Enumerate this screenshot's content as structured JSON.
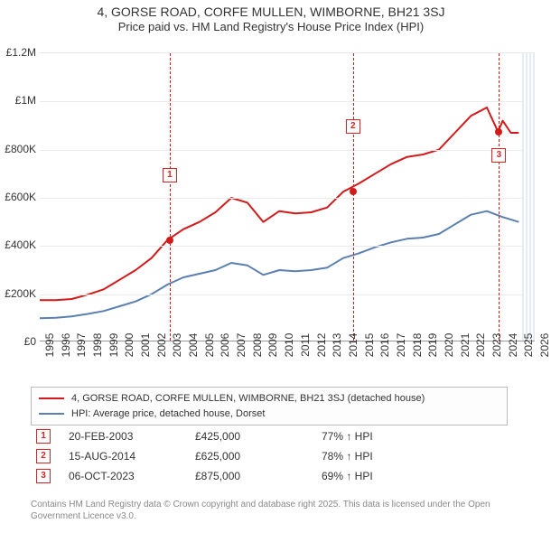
{
  "title": {
    "line1": "4, GORSE ROAD, CORFE MULLEN, WIMBORNE, BH21 3SJ",
    "line2": "Price paid vs. HM Land Registry's House Price Index (HPI)",
    "title_fontsize": 14,
    "subtitle_fontsize": 13,
    "color": "#333333"
  },
  "chart": {
    "type": "line",
    "background_color": "#ffffff",
    "grid_color": "#eaeaea",
    "axis_color": "#999999",
    "label_fontsize": 12,
    "x": {
      "min": 1995,
      "max": 2026,
      "ticks": [
        1995,
        1996,
        1997,
        1998,
        1999,
        2000,
        2001,
        2002,
        2003,
        2004,
        2005,
        2006,
        2007,
        2008,
        2009,
        2010,
        2011,
        2012,
        2013,
        2014,
        2015,
        2016,
        2017,
        2018,
        2019,
        2020,
        2021,
        2022,
        2023,
        2024,
        2025,
        2026
      ]
    },
    "y": {
      "min": 0,
      "max": 1200000,
      "ticks": [
        0,
        200000,
        400000,
        600000,
        800000,
        1000000,
        1200000
      ],
      "tick_labels": [
        "£0",
        "£200K",
        "£400K",
        "£600K",
        "£800K",
        "£1M",
        "£1.2M"
      ]
    },
    "end_shade": {
      "from": 2025.2,
      "to": 2026,
      "color": "#e6ecf3"
    },
    "series": [
      {
        "id": "property",
        "label": "4, GORSE ROAD, CORFE MULLEN, WIMBORNE, BH21 3SJ (detached house)",
        "color": "#d31a1a",
        "line_width": 2,
        "points": [
          [
            1995,
            175000
          ],
          [
            1996,
            175000
          ],
          [
            1997,
            180000
          ],
          [
            1998,
            198000
          ],
          [
            1999,
            220000
          ],
          [
            2000,
            260000
          ],
          [
            2001,
            300000
          ],
          [
            2002,
            350000
          ],
          [
            2003,
            425000
          ],
          [
            2004,
            470000
          ],
          [
            2005,
            500000
          ],
          [
            2006,
            540000
          ],
          [
            2007,
            600000
          ],
          [
            2008,
            580000
          ],
          [
            2009,
            500000
          ],
          [
            2010,
            545000
          ],
          [
            2011,
            535000
          ],
          [
            2012,
            540000
          ],
          [
            2013,
            560000
          ],
          [
            2014,
            625000
          ],
          [
            2015,
            660000
          ],
          [
            2016,
            700000
          ],
          [
            2017,
            740000
          ],
          [
            2018,
            770000
          ],
          [
            2019,
            780000
          ],
          [
            2020,
            800000
          ],
          [
            2021,
            870000
          ],
          [
            2022,
            940000
          ],
          [
            2023,
            975000
          ],
          [
            2023.7,
            875000
          ],
          [
            2024,
            920000
          ],
          [
            2024.5,
            870000
          ],
          [
            2025,
            870000
          ]
        ]
      },
      {
        "id": "hpi",
        "label": "HPI: Average price, detached house, Dorset",
        "color": "#5b7fb0",
        "line_width": 2,
        "points": [
          [
            1995,
            100000
          ],
          [
            1996,
            102000
          ],
          [
            1997,
            108000
          ],
          [
            1998,
            118000
          ],
          [
            1999,
            130000
          ],
          [
            2000,
            150000
          ],
          [
            2001,
            170000
          ],
          [
            2002,
            200000
          ],
          [
            2003,
            240000
          ],
          [
            2004,
            270000
          ],
          [
            2005,
            285000
          ],
          [
            2006,
            300000
          ],
          [
            2007,
            330000
          ],
          [
            2008,
            320000
          ],
          [
            2009,
            280000
          ],
          [
            2010,
            300000
          ],
          [
            2011,
            295000
          ],
          [
            2012,
            300000
          ],
          [
            2013,
            310000
          ],
          [
            2014,
            350000
          ],
          [
            2015,
            370000
          ],
          [
            2016,
            395000
          ],
          [
            2017,
            415000
          ],
          [
            2018,
            430000
          ],
          [
            2019,
            435000
          ],
          [
            2020,
            450000
          ],
          [
            2021,
            490000
          ],
          [
            2022,
            530000
          ],
          [
            2023,
            545000
          ],
          [
            2024,
            520000
          ],
          [
            2025,
            500000
          ]
        ]
      }
    ],
    "markers": [
      {
        "n": "1",
        "year": 2003.14,
        "price": 425000,
        "date": "20-FEB-2003",
        "price_label": "£425,000",
        "hpi": "77% ↑ HPI"
      },
      {
        "n": "2",
        "year": 2014.62,
        "price": 625000,
        "date": "15-AUG-2014",
        "price_label": "£625,000",
        "hpi": "78% ↑ HPI"
      },
      {
        "n": "3",
        "year": 2023.76,
        "price": 875000,
        "date": "06-OCT-2023",
        "price_label": "£875,000",
        "hpi": "69% ↑ HPI"
      }
    ],
    "marker_badge": {
      "border_color": "#d31a1a",
      "text_color": "#d31a1a",
      "bg": "#ffffff",
      "fontsize": 10
    }
  },
  "legend": {
    "border_color": "#bbbbbb",
    "bg": "#fdfdfd",
    "fontsize": 11
  },
  "footer": {
    "text": "Contains HM Land Registry data © Crown copyright and database right 2025. This data is licensed under the Open Government Licence v3.0.",
    "color": "#888888",
    "fontsize": 10
  }
}
